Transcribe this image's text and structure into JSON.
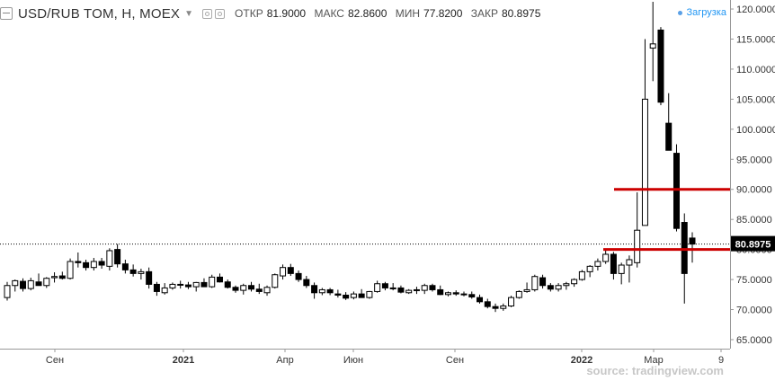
{
  "header": {
    "symbol": "USD/RUB TOM, H, MOEX",
    "ohlc": [
      {
        "key": "ОТКР",
        "value": "81.9000"
      },
      {
        "key": "МАКС",
        "value": "82.8600"
      },
      {
        "key": "МИН",
        "value": "77.8200"
      },
      {
        "key": "ЗАКР",
        "value": "80.8975"
      }
    ],
    "loading_label": "Загрузка"
  },
  "source": "source: tradingview.com",
  "colors": {
    "up_fill": "#ffffff",
    "down_fill": "#000000",
    "candle_border": "#000000",
    "level_line": "#cc0000",
    "price_tag_bg": "#000000",
    "price_tag_text": "#ffffff",
    "axis_text": "#333333"
  },
  "chart_data": {
    "type": "candlestick",
    "y_axis": {
      "position": "right",
      "ticks": [
        "65.0000",
        "70.0000",
        "75.0000",
        "80.0000",
        "85.0000",
        "90.0000",
        "95.0000",
        "100.0000",
        "105.0000",
        "110.0000",
        "115.0000",
        "120.0000"
      ],
      "range": [
        63.5,
        121.5
      ]
    },
    "x_axis": {
      "ticks": [
        "Сен",
        "2021",
        "Апр",
        "Июн",
        "Сен",
        "2022",
        "Мар",
        "9"
      ],
      "bold_ticks": [
        "2021",
        "2022"
      ]
    },
    "last_price": {
      "value": 80.8975,
      "label": "80.8975"
    },
    "horizontal_levels": [
      90.0,
      80.0
    ],
    "candles": [
      {
        "o": 72,
        "h": 74.6,
        "l": 71.5,
        "c": 74
      },
      {
        "o": 74,
        "h": 75,
        "l": 73,
        "c": 74.8
      },
      {
        "o": 74.7,
        "h": 75.2,
        "l": 73,
        "c": 73.5
      },
      {
        "o": 73.5,
        "h": 75.3,
        "l": 73.2,
        "c": 74.8
      },
      {
        "o": 74.6,
        "h": 76,
        "l": 74,
        "c": 74
      },
      {
        "o": 74,
        "h": 75.4,
        "l": 73.6,
        "c": 75.2
      },
      {
        "o": 75.3,
        "h": 76.2,
        "l": 74.5,
        "c": 75.5
      },
      {
        "o": 75.6,
        "h": 76.3,
        "l": 75,
        "c": 75.2
      },
      {
        "o": 75.2,
        "h": 78.5,
        "l": 75,
        "c": 78
      },
      {
        "o": 78,
        "h": 79.5,
        "l": 77,
        "c": 77.8
      },
      {
        "o": 77.8,
        "h": 78.3,
        "l": 76.5,
        "c": 77
      },
      {
        "o": 77,
        "h": 78.6,
        "l": 76.5,
        "c": 78
      },
      {
        "o": 78,
        "h": 78.6,
        "l": 76.8,
        "c": 77.4
      },
      {
        "o": 77.2,
        "h": 80.2,
        "l": 76.5,
        "c": 79.8
      },
      {
        "o": 80,
        "h": 80.9,
        "l": 77,
        "c": 77.6
      },
      {
        "o": 77.6,
        "h": 78.3,
        "l": 76,
        "c": 76.6
      },
      {
        "o": 76.6,
        "h": 77.5,
        "l": 75.5,
        "c": 76
      },
      {
        "o": 76,
        "h": 76.8,
        "l": 75,
        "c": 76.3
      },
      {
        "o": 76.3,
        "h": 77,
        "l": 73.5,
        "c": 74.2
      },
      {
        "o": 74.2,
        "h": 74.6,
        "l": 72.3,
        "c": 73
      },
      {
        "o": 72.8,
        "h": 74.4,
        "l": 72.5,
        "c": 73.6
      },
      {
        "o": 73.6,
        "h": 74.5,
        "l": 73.3,
        "c": 74.2
      },
      {
        "o": 74.2,
        "h": 74.8,
        "l": 73.5,
        "c": 74.1
      },
      {
        "o": 74.1,
        "h": 74.6,
        "l": 73.4,
        "c": 73.8
      },
      {
        "o": 73.8,
        "h": 74.6,
        "l": 73,
        "c": 74.5
      },
      {
        "o": 74.5,
        "h": 75.2,
        "l": 73.8,
        "c": 73.8
      },
      {
        "o": 73.8,
        "h": 75.8,
        "l": 73.6,
        "c": 75.4
      },
      {
        "o": 75.4,
        "h": 76,
        "l": 74.5,
        "c": 74.6
      },
      {
        "o": 74.6,
        "h": 75,
        "l": 73.5,
        "c": 73.7
      },
      {
        "o": 73.7,
        "h": 74,
        "l": 72.8,
        "c": 73.2
      },
      {
        "o": 73.2,
        "h": 74.3,
        "l": 72.5,
        "c": 74
      },
      {
        "o": 74,
        "h": 74.6,
        "l": 73,
        "c": 73.4
      },
      {
        "o": 73.4,
        "h": 74.3,
        "l": 72.6,
        "c": 73
      },
      {
        "o": 72.8,
        "h": 74,
        "l": 72.3,
        "c": 73.7
      },
      {
        "o": 73.7,
        "h": 76,
        "l": 73.5,
        "c": 75.8
      },
      {
        "o": 75.6,
        "h": 77.5,
        "l": 75,
        "c": 77
      },
      {
        "o": 77,
        "h": 77.6,
        "l": 75.6,
        "c": 76
      },
      {
        "o": 76,
        "h": 76.5,
        "l": 74.6,
        "c": 75
      },
      {
        "o": 75,
        "h": 75.6,
        "l": 73.6,
        "c": 74
      },
      {
        "o": 74,
        "h": 74.5,
        "l": 71.8,
        "c": 72.8
      },
      {
        "o": 72.8,
        "h": 73.6,
        "l": 72.4,
        "c": 73.3
      },
      {
        "o": 73.3,
        "h": 73.6,
        "l": 72.4,
        "c": 72.8
      },
      {
        "o": 72.6,
        "h": 73.3,
        "l": 72,
        "c": 72.4
      },
      {
        "o": 72.4,
        "h": 72.9,
        "l": 71.6,
        "c": 71.9
      },
      {
        "o": 72,
        "h": 73,
        "l": 71.7,
        "c": 72.6
      },
      {
        "o": 72.6,
        "h": 73.4,
        "l": 72,
        "c": 72
      },
      {
        "o": 72,
        "h": 73.1,
        "l": 71.8,
        "c": 73
      },
      {
        "o": 73,
        "h": 74.8,
        "l": 72.8,
        "c": 74.3
      },
      {
        "o": 74.3,
        "h": 74.6,
        "l": 73.2,
        "c": 73.6
      },
      {
        "o": 73.6,
        "h": 74.4,
        "l": 73.2,
        "c": 73.6
      },
      {
        "o": 73.6,
        "h": 74,
        "l": 72.7,
        "c": 72.9
      },
      {
        "o": 72.8,
        "h": 73.4,
        "l": 72.6,
        "c": 73.2
      },
      {
        "o": 73.2,
        "h": 73.8,
        "l": 72.6,
        "c": 73.3
      },
      {
        "o": 73.2,
        "h": 74.3,
        "l": 72.6,
        "c": 74
      },
      {
        "o": 74,
        "h": 74.3,
        "l": 73,
        "c": 73.3
      },
      {
        "o": 73.3,
        "h": 74,
        "l": 72.4,
        "c": 72.5
      },
      {
        "o": 72.5,
        "h": 73,
        "l": 72.2,
        "c": 72.8
      },
      {
        "o": 72.8,
        "h": 73.2,
        "l": 72.3,
        "c": 72.6
      },
      {
        "o": 72.6,
        "h": 73,
        "l": 72.2,
        "c": 72.5
      },
      {
        "o": 72.5,
        "h": 73,
        "l": 71.8,
        "c": 72.1
      },
      {
        "o": 72,
        "h": 72.5,
        "l": 71,
        "c": 71.3
      },
      {
        "o": 71.3,
        "h": 71.8,
        "l": 70.2,
        "c": 70.5
      },
      {
        "o": 70.5,
        "h": 71,
        "l": 69.6,
        "c": 70.2
      },
      {
        "o": 70.2,
        "h": 71,
        "l": 69.8,
        "c": 70.6
      },
      {
        "o": 70.6,
        "h": 72.3,
        "l": 70.4,
        "c": 72
      },
      {
        "o": 72,
        "h": 73.2,
        "l": 71.8,
        "c": 73
      },
      {
        "o": 73,
        "h": 74.5,
        "l": 72.8,
        "c": 73.3
      },
      {
        "o": 73.3,
        "h": 75.8,
        "l": 73,
        "c": 75.5
      },
      {
        "o": 75.3,
        "h": 75.8,
        "l": 73.5,
        "c": 74
      },
      {
        "o": 74,
        "h": 74.4,
        "l": 73,
        "c": 73.4
      },
      {
        "o": 73.4,
        "h": 74.4,
        "l": 73,
        "c": 74
      },
      {
        "o": 74,
        "h": 74.6,
        "l": 73.3,
        "c": 74.3
      },
      {
        "o": 74.3,
        "h": 75.2,
        "l": 73.8,
        "c": 75
      },
      {
        "o": 75,
        "h": 76.6,
        "l": 74.8,
        "c": 76.3
      },
      {
        "o": 76.3,
        "h": 77.4,
        "l": 75.4,
        "c": 77.2
      },
      {
        "o": 77.2,
        "h": 78.5,
        "l": 76.5,
        "c": 78
      },
      {
        "o": 78,
        "h": 80,
        "l": 77.6,
        "c": 79.2
      },
      {
        "o": 79.2,
        "h": 79.6,
        "l": 75,
        "c": 76
      },
      {
        "o": 76,
        "h": 77.8,
        "l": 74.2,
        "c": 77.4
      },
      {
        "o": 77.4,
        "h": 79,
        "l": 74.5,
        "c": 78.3
      },
      {
        "o": 77.8,
        "h": 89.5,
        "l": 77,
        "c": 83.2
      },
      {
        "o": 84,
        "h": 115,
        "l": 84,
        "c": 105
      },
      {
        "o": 113.5,
        "h": 121.2,
        "l": 108,
        "c": 114.2
      },
      {
        "o": 116.5,
        "h": 117,
        "l": 104,
        "c": 104.5
      },
      {
        "o": 101,
        "h": 106,
        "l": 96.5,
        "c": 96.5
      },
      {
        "o": 96,
        "h": 97.5,
        "l": 83,
        "c": 83.5
      },
      {
        "o": 84.5,
        "h": 86,
        "l": 71,
        "c": 76
      },
      {
        "o": 81.9,
        "h": 82.86,
        "l": 77.82,
        "c": 80.8975
      }
    ]
  }
}
